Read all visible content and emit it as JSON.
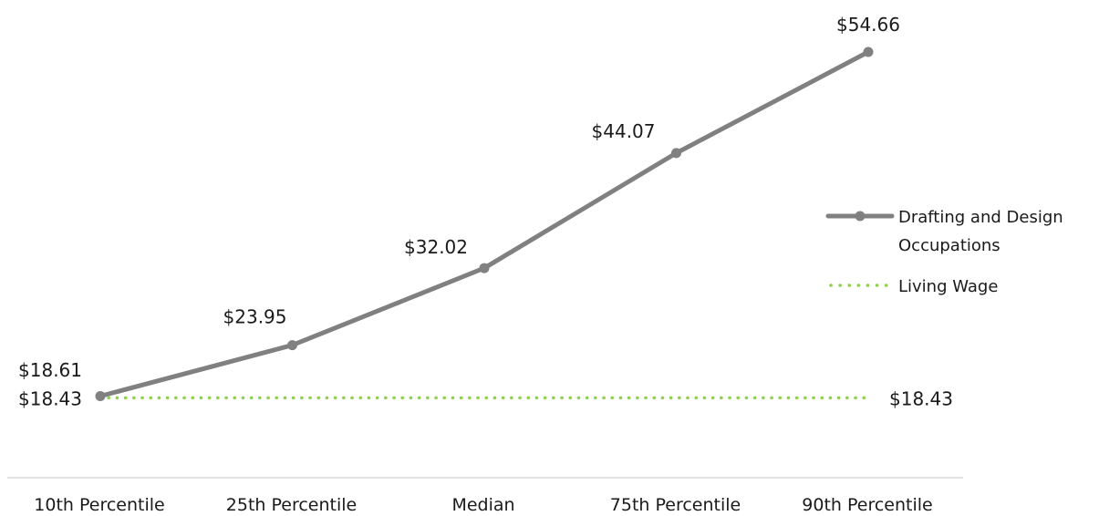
{
  "chart_data": {
    "type": "line",
    "categories": [
      "10th Percentile",
      "25th Percentile",
      "Median",
      "75th Percentile",
      "90th Percentile"
    ],
    "series": [
      {
        "name": "Drafting and Design Occupations",
        "values": [
          18.61,
          23.95,
          32.02,
          44.07,
          54.66
        ],
        "labels": [
          "$18.61",
          "$23.95",
          "$32.02",
          "$44.07",
          "$54.66"
        ],
        "color": "#808080",
        "style": "solid-with-markers"
      },
      {
        "name": "Living Wage",
        "values": [
          18.43,
          18.43,
          18.43,
          18.43,
          18.43
        ],
        "start_label": "$18.43",
        "end_label": "$18.43",
        "color": "#8fd14f",
        "style": "dotted"
      }
    ],
    "legend": {
      "position": "right",
      "entries": [
        {
          "lines": [
            "Drafting and Design",
            "Occupations"
          ]
        },
        {
          "lines": [
            "Living Wage"
          ]
        }
      ]
    },
    "ylim": [
      0,
      60
    ],
    "grid": false,
    "title": "",
    "xlabel": "",
    "ylabel": ""
  }
}
